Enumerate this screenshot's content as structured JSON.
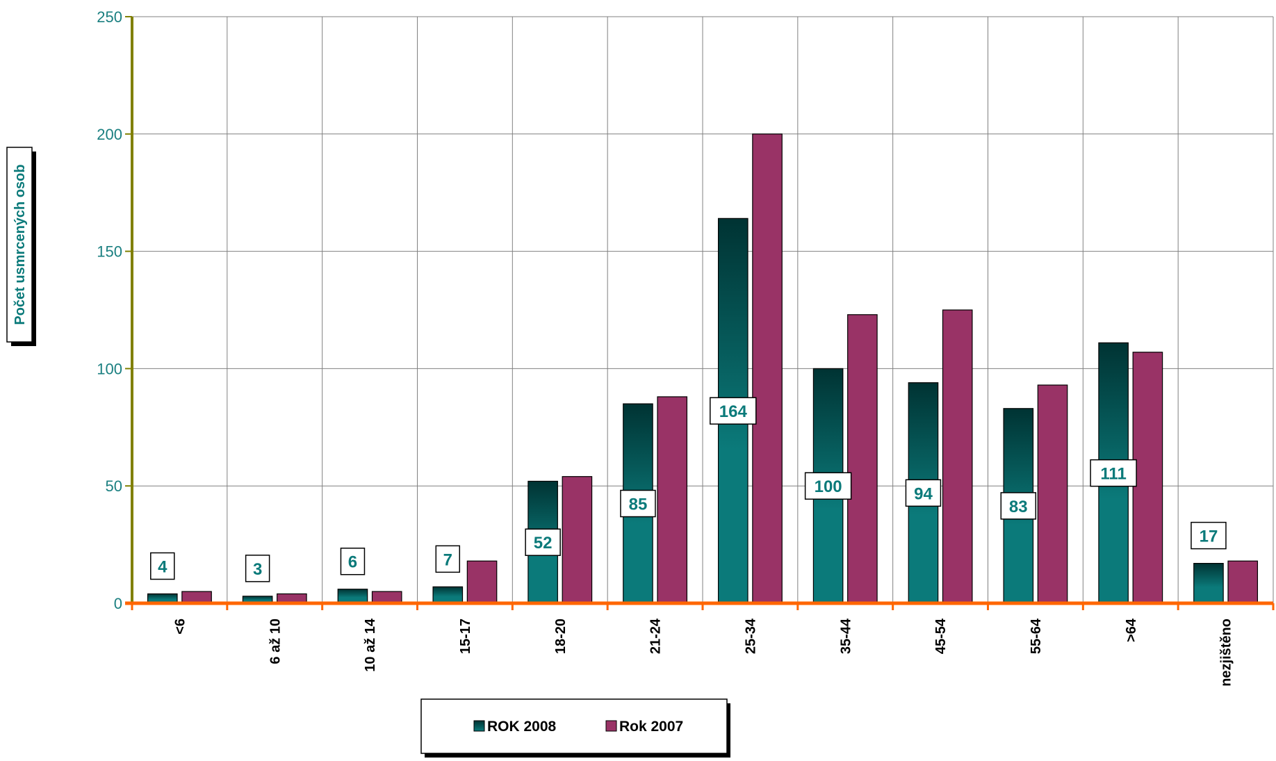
{
  "chart_data": {
    "type": "bar",
    "ylabel": "Počet usmrcených osob",
    "ylim": [
      0,
      250
    ],
    "yticks": [
      "0",
      "50",
      "100",
      "150",
      "200",
      "250"
    ],
    "grid": true,
    "legend_position": "bottom",
    "categories": [
      "<6",
      "6 až 10",
      "10 až 14",
      "15-17",
      "18-20",
      "21-24",
      "25-34",
      "35-44",
      "45-54",
      "55-64",
      ">64",
      "nezjištěno"
    ],
    "series": [
      {
        "name": "ROK 2008",
        "color": "#0b7a7a",
        "values": [
          4,
          3,
          6,
          7,
          52,
          85,
          164,
          100,
          94,
          83,
          111,
          17
        ]
      },
      {
        "name": "Rok 2007",
        "color": "#993366",
        "values": [
          5,
          4,
          5,
          18,
          54,
          88,
          200,
          123,
          125,
          93,
          107,
          18
        ]
      }
    ],
    "data_labels_series": "ROK 2008",
    "data_labels": [
      "4",
      "3",
      "6",
      "7",
      "52",
      "85",
      "164",
      "100",
      "94",
      "83",
      "111",
      "17"
    ]
  },
  "colors": {
    "y_axis": "#808000",
    "x_axis": "#ff6600",
    "gridline": "#808080"
  }
}
